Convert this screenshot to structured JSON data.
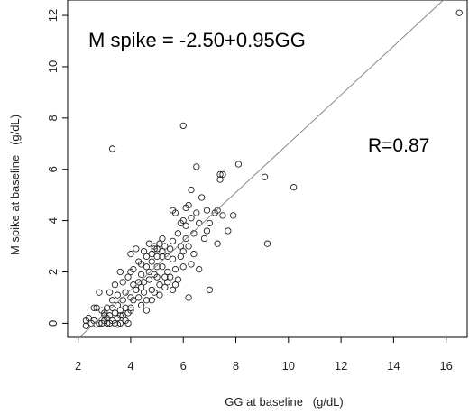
{
  "chart_data": {
    "type": "scatter",
    "title": "",
    "xlabel": "GG at baseline   (g/dL)",
    "ylabel": "M spike at baseline   (g/dL)",
    "xlim": [
      1.6,
      16.8
    ],
    "ylim": [
      -0.55,
      12.6
    ],
    "xticks": [
      2,
      4,
      6,
      8,
      10,
      12,
      14,
      16
    ],
    "yticks": [
      0,
      2,
      4,
      6,
      8,
      10,
      12
    ],
    "grid": false,
    "annotations": {
      "equation": "M spike = -2.50+0.95GG",
      "r": "R=0.87"
    },
    "regression": {
      "intercept": -2.5,
      "slope": 0.95
    },
    "points": [
      [
        16.5,
        12.1
      ],
      [
        6.0,
        7.7
      ],
      [
        3.3,
        6.8
      ],
      [
        6.5,
        6.1
      ],
      [
        8.1,
        6.2
      ],
      [
        7.4,
        5.8
      ],
      [
        7.5,
        5.8
      ],
      [
        9.1,
        5.7
      ],
      [
        7.4,
        5.6
      ],
      [
        10.2,
        5.3
      ],
      [
        6.3,
        5.2
      ],
      [
        6.7,
        4.9
      ],
      [
        6.2,
        4.6
      ],
      [
        6.5,
        4.3
      ],
      [
        6.9,
        4.4
      ],
      [
        7.2,
        4.3
      ],
      [
        7.5,
        4.2
      ],
      [
        7.7,
        3.6
      ],
      [
        7.9,
        4.2
      ],
      [
        5.6,
        4.4
      ],
      [
        5.7,
        4.3
      ],
      [
        6.0,
        4.0
      ],
      [
        6.1,
        3.8
      ],
      [
        6.3,
        4.1
      ],
      [
        5.8,
        3.5
      ],
      [
        6.8,
        3.3
      ],
      [
        7.3,
        3.1
      ],
      [
        9.2,
        3.1
      ],
      [
        6.4,
        2.7
      ],
      [
        6.3,
        2.3
      ],
      [
        5.9,
        2.6
      ],
      [
        6.6,
        2.1
      ],
      [
        6.2,
        1.0
      ],
      [
        7.0,
        1.3
      ],
      [
        5.5,
        2.9
      ],
      [
        5.2,
        2.6
      ],
      [
        5.1,
        3.1
      ],
      [
        4.9,
        2.9
      ],
      [
        5.0,
        2.6
      ],
      [
        4.7,
        3.1
      ],
      [
        4.6,
        2.2
      ],
      [
        4.5,
        2.8
      ],
      [
        4.3,
        2.4
      ],
      [
        4.1,
        2.1
      ],
      [
        4.0,
        2.7
      ],
      [
        4.0,
        2.0
      ],
      [
        4.4,
        1.9
      ],
      [
        4.5,
        1.6
      ],
      [
        4.2,
        1.3
      ],
      [
        4.8,
        1.3
      ],
      [
        4.9,
        1.9
      ],
      [
        5.0,
        1.8
      ],
      [
        4.6,
        0.9
      ],
      [
        4.3,
        1.0
      ],
      [
        4.0,
        1.0
      ],
      [
        3.8,
        1.2
      ],
      [
        3.7,
        1.6
      ],
      [
        3.6,
        2.0
      ],
      [
        3.5,
        1.1
      ],
      [
        3.4,
        1.5
      ],
      [
        3.3,
        0.9
      ],
      [
        3.2,
        1.2
      ],
      [
        3.1,
        0.6
      ],
      [
        3.0,
        0.3
      ],
      [
        2.9,
        0.5
      ],
      [
        2.8,
        1.2
      ],
      [
        2.7,
        0.6
      ],
      [
        2.6,
        0.1
      ],
      [
        2.5,
        0.0
      ],
      [
        2.4,
        0.2
      ],
      [
        2.3,
        0.1
      ],
      [
        2.3,
        -0.1
      ],
      [
        2.6,
        0.6
      ],
      [
        2.8,
        0.0
      ],
      [
        2.9,
        0.0
      ],
      [
        3.0,
        0.1
      ],
      [
        3.1,
        0.2
      ],
      [
        3.2,
        0.0
      ],
      [
        3.3,
        0.1
      ],
      [
        3.4,
        0.0
      ],
      [
        3.5,
        0.2
      ],
      [
        3.6,
        0.0
      ],
      [
        3.7,
        0.3
      ],
      [
        3.8,
        0.1
      ],
      [
        3.9,
        0.0
      ],
      [
        3.4,
        0.4
      ],
      [
        3.6,
        0.5
      ],
      [
        3.8,
        0.6
      ],
      [
        3.9,
        0.4
      ],
      [
        3.5,
        0.7
      ],
      [
        3.7,
        0.9
      ],
      [
        4.0,
        0.6
      ],
      [
        3.3,
        0.6
      ],
      [
        3.1,
        0.0
      ],
      [
        3.0,
        0.4
      ],
      [
        4.4,
        0.7
      ],
      [
        4.6,
        0.5
      ],
      [
        4.8,
        0.9
      ],
      [
        5.1,
        1.1
      ],
      [
        5.3,
        1.4
      ],
      [
        5.4,
        2.0
      ],
      [
        5.2,
        2.2
      ],
      [
        5.0,
        2.2
      ],
      [
        4.8,
        2.4
      ],
      [
        4.9,
        3.0
      ],
      [
        4.6,
        2.6
      ],
      [
        4.4,
        2.3
      ],
      [
        4.2,
        2.9
      ],
      [
        5.3,
        3.0
      ],
      [
        5.6,
        3.2
      ],
      [
        5.6,
        2.5
      ],
      [
        5.7,
        2.1
      ],
      [
        5.9,
        3.0
      ],
      [
        6.1,
        3.3
      ],
      [
        6.0,
        2.8
      ],
      [
        5.4,
        1.6
      ],
      [
        5.6,
        1.3
      ],
      [
        5.8,
        1.7
      ],
      [
        5.5,
        1.8
      ],
      [
        5.7,
        1.5
      ],
      [
        4.7,
        1.7
      ],
      [
        4.3,
        1.6
      ],
      [
        4.1,
        1.5
      ],
      [
        3.9,
        1.8
      ],
      [
        4.1,
        0.9
      ],
      [
        4.0,
        0.5
      ],
      [
        3.2,
        0.3
      ],
      [
        3.5,
        -0.05
      ],
      [
        3.6,
        0.3
      ],
      [
        2.7,
        -0.05
      ],
      [
        5.2,
        3.3
      ],
      [
        5.0,
        2.9
      ],
      [
        4.8,
        2.7
      ],
      [
        5.4,
        2.6
      ],
      [
        5.2,
        2.8
      ],
      [
        5.3,
        1.8
      ],
      [
        4.5,
        1.2
      ],
      [
        4.7,
        2.0
      ],
      [
        6.0,
        2.2
      ],
      [
        6.4,
        3.5
      ],
      [
        6.2,
        3.0
      ],
      [
        6.6,
        3.9
      ],
      [
        5.9,
        3.9
      ],
      [
        6.1,
        4.5
      ],
      [
        7.0,
        3.9
      ],
      [
        7.3,
        4.4
      ],
      [
        6.9,
        3.6
      ],
      [
        4.9,
        1.2
      ],
      [
        5.1,
        1.5
      ],
      [
        4.4,
        1.4
      ]
    ]
  }
}
